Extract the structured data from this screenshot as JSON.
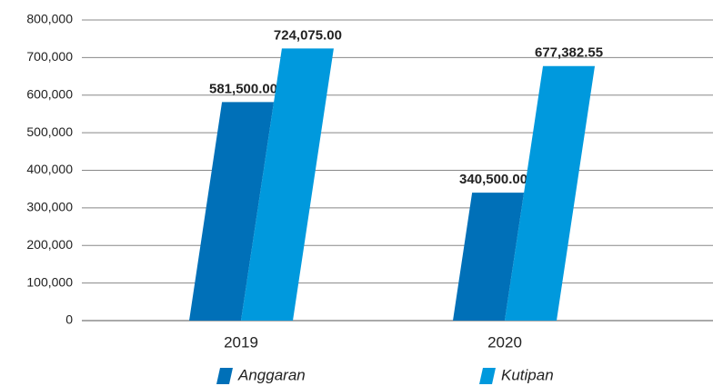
{
  "chart_data": {
    "type": "bar",
    "categories": [
      "2019",
      "2020"
    ],
    "series": [
      {
        "name": "Anggaran",
        "color": "#0070b8",
        "values": [
          581500,
          340500
        ],
        "value_labels": [
          "581,500.00",
          "340,500.00"
        ]
      },
      {
        "name": "Kutipan",
        "color": "#0099dd",
        "values": [
          724075,
          677382.55
        ],
        "value_labels": [
          "724,075.00",
          "677,382.55"
        ]
      }
    ],
    "ylim": [
      0,
      800000
    ],
    "yticks": [
      0,
      {
        "value": 100000,
        "label": "100,000"
      },
      {
        "value": 200000,
        "label": "200,000"
      },
      {
        "value": 300000,
        "label": "300,000"
      },
      {
        "value": 400000,
        "label": "400,000"
      },
      {
        "value": 500000,
        "label": "500,000"
      },
      {
        "value": 600000,
        "label": "600,000"
      },
      {
        "value": 700000,
        "label": "700,000"
      },
      {
        "value": 800000,
        "label": "800,000"
      }
    ],
    "grid": true,
    "legend": "bottom"
  }
}
